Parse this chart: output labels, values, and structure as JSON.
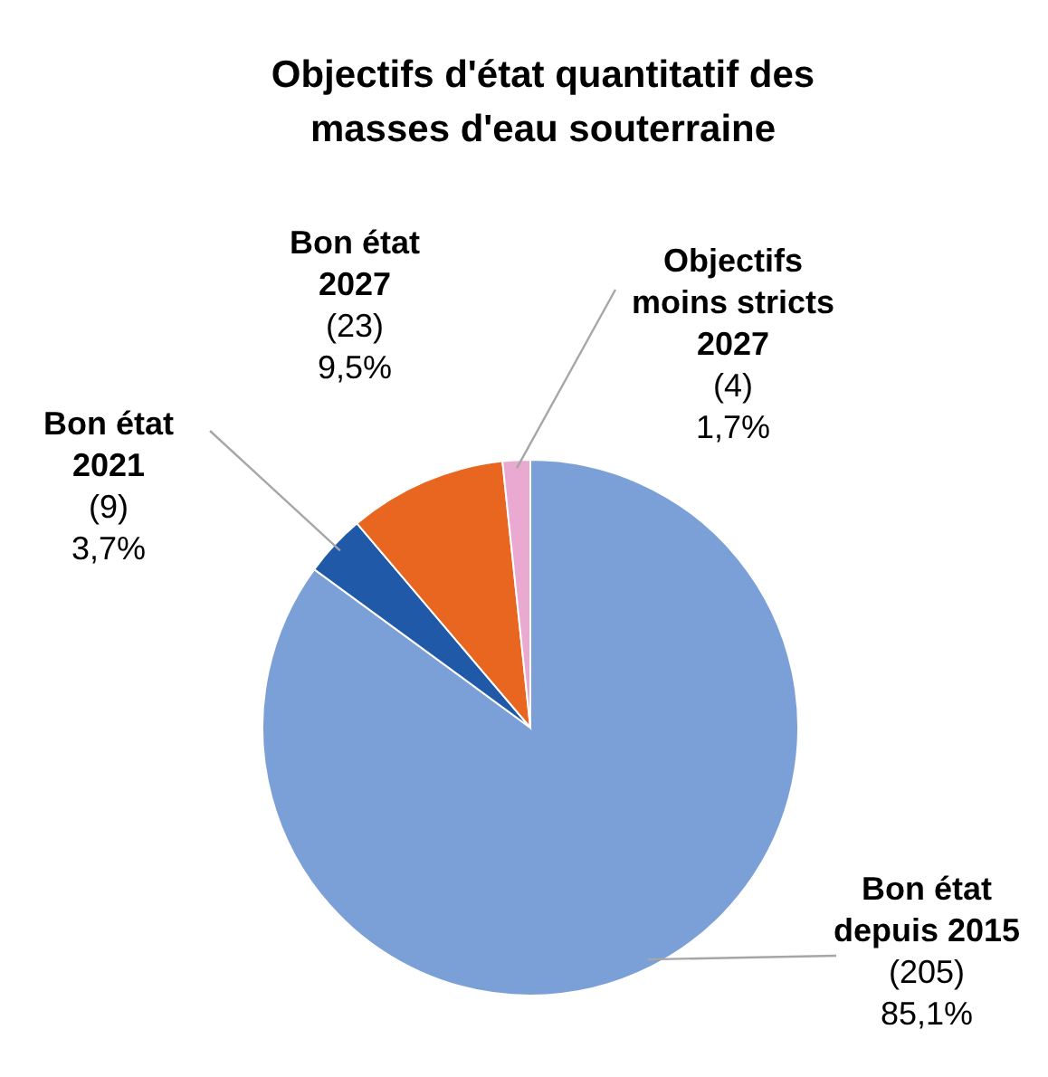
{
  "chart_data": {
    "type": "pie",
    "title": "Objectifs d'état quantitatif des\nmasses d'eau souterraine",
    "categories": [
      "Bon état\ndepuis 2015",
      "Bon état\n2021",
      "Bon état\n2027",
      "Objectifs\nmoins stricts\n2027"
    ],
    "values": [
      205,
      9,
      23,
      4
    ],
    "colors": [
      "#7ba0d8",
      "#1f59a8",
      "#e8661f",
      "#e9a9d0"
    ],
    "value_labels": [
      "(205)\n85,1%",
      "(9)\n3,7%",
      "(23)\n9,5%",
      "(4)\n1,7%"
    ]
  }
}
